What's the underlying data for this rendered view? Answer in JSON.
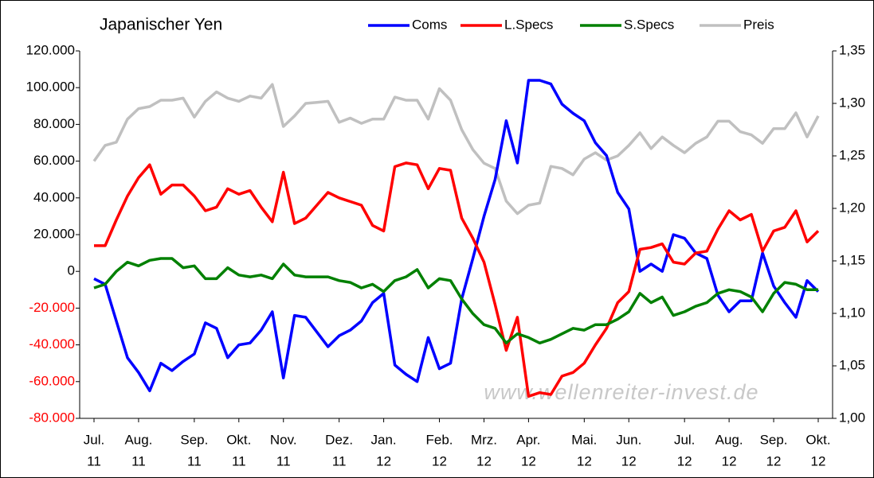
{
  "chart_data": {
    "type": "line",
    "title": "Japanischer Yen",
    "watermark": "www.wellenreiter-invest.de",
    "categories": [
      [
        "Jul.",
        "11"
      ],
      null,
      null,
      null,
      [
        "Aug.",
        "11"
      ],
      null,
      null,
      null,
      null,
      [
        "Sep.",
        "11"
      ],
      null,
      null,
      null,
      [
        "Okt.",
        "11"
      ],
      null,
      null,
      null,
      [
        "Nov.",
        "11"
      ],
      null,
      null,
      null,
      null,
      [
        "Dez.",
        "11"
      ],
      null,
      null,
      null,
      [
        "Jan.",
        "12"
      ],
      null,
      null,
      null,
      null,
      [
        "Feb.",
        "12"
      ],
      null,
      null,
      null,
      [
        "Mrz.",
        "12"
      ],
      null,
      null,
      null,
      [
        "Apr.",
        "12"
      ],
      null,
      null,
      null,
      null,
      [
        "Mai.",
        "12"
      ],
      null,
      null,
      null,
      [
        "Jun.",
        "12"
      ],
      null,
      null,
      null,
      null,
      [
        "Jul.",
        "12"
      ],
      null,
      null,
      null,
      [
        "Aug.",
        "12"
      ],
      null,
      null,
      null,
      [
        "Sep.",
        "12"
      ],
      null,
      null,
      null,
      [
        "Okt.",
        "12"
      ]
    ],
    "series": [
      {
        "name": "Coms",
        "color": "#0000ff",
        "values": [
          -4000,
          -7000,
          -27000,
          -47000,
          -55000,
          -65000,
          -50000,
          -54000,
          -49000,
          -45000,
          -28000,
          -31000,
          -47000,
          -40000,
          -39000,
          -32000,
          -22000,
          -58000,
          -24000,
          -25000,
          -33000,
          -41000,
          -35000,
          -32000,
          -27000,
          -17000,
          -12000,
          -51000,
          -56000,
          -60000,
          -36000,
          -53000,
          -50000,
          -15000,
          7000,
          30000,
          50000,
          82000,
          59000,
          104000,
          104000,
          102000,
          91000,
          86000,
          82000,
          70000,
          63000,
          43000,
          34000,
          0,
          4000,
          0,
          20000,
          18000,
          10000,
          7000,
          -13000,
          -22000,
          -16000,
          -16000,
          10000,
          -8000,
          -17000,
          -25000,
          -5000,
          -11000
        ]
      },
      {
        "name": "L.Specs",
        "color": "#ff0000",
        "values": [
          14000,
          14000,
          28000,
          41000,
          51000,
          58000,
          42000,
          47000,
          47000,
          41000,
          33000,
          35000,
          45000,
          42000,
          44000,
          35000,
          27000,
          54000,
          26000,
          29000,
          36000,
          43000,
          40000,
          38000,
          36000,
          25000,
          22000,
          57000,
          59000,
          58000,
          45000,
          56000,
          55000,
          29000,
          18000,
          5000,
          -18000,
          -43000,
          -25000,
          -68000,
          -66000,
          -67000,
          -57000,
          -55000,
          -50000,
          -40000,
          -31000,
          -17000,
          -11000,
          12000,
          13000,
          15000,
          5000,
          4000,
          10000,
          11000,
          23000,
          33000,
          28000,
          31000,
          11000,
          22000,
          24000,
          33000,
          16000,
          22000
        ]
      },
      {
        "name": "S.Specs",
        "color": "#008000",
        "values": [
          -9000,
          -7000,
          0,
          5000,
          3000,
          6000,
          7000,
          7000,
          2000,
          3000,
          -4000,
          -4000,
          2000,
          -2000,
          -3000,
          -2000,
          -4000,
          4000,
          -2000,
          -3000,
          -3000,
          -3000,
          -5000,
          -6000,
          -9000,
          -7000,
          -11000,
          -5000,
          -3000,
          1000,
          -9000,
          -4000,
          -5000,
          -15000,
          -23000,
          -29000,
          -31000,
          -39000,
          -34000,
          -36000,
          -39000,
          -37000,
          -34000,
          -31000,
          -32000,
          -29000,
          -29000,
          -26000,
          -22000,
          -12000,
          -17000,
          -14000,
          -24000,
          -22000,
          -19000,
          -17000,
          -12000,
          -10000,
          -11000,
          -14000,
          -22000,
          -12000,
          -6000,
          -7000,
          -10000,
          -10000
        ]
      },
      {
        "name": "Preis",
        "color": "#c0c0c0",
        "axis": "y2",
        "values": [
          1.245,
          1.26,
          1.263,
          1.285,
          1.295,
          1.297,
          1.303,
          1.303,
          1.305,
          1.287,
          1.302,
          1.311,
          1.305,
          1.302,
          1.307,
          1.305,
          1.318,
          1.278,
          1.288,
          1.3,
          1.301,
          1.302,
          1.282,
          1.286,
          1.281,
          1.285,
          1.285,
          1.306,
          1.303,
          1.303,
          1.285,
          1.314,
          1.303,
          1.275,
          1.256,
          1.243,
          1.238,
          1.207,
          1.195,
          1.203,
          1.205,
          1.24,
          1.238,
          1.232,
          1.247,
          1.253,
          1.246,
          1.25,
          1.26,
          1.272,
          1.257,
          1.268,
          1.26,
          1.253,
          1.262,
          1.268,
          1.283,
          1.283,
          1.273,
          1.27,
          1.262,
          1.276,
          1.276,
          1.291,
          1.268,
          1.288
        ]
      }
    ],
    "ylim": [
      -80000,
      120000
    ],
    "yticks": [
      {
        "value": -80000,
        "label": "-80.000"
      },
      {
        "value": -60000,
        "label": "-60.000"
      },
      {
        "value": -40000,
        "label": "-40.000"
      },
      {
        "value": -20000,
        "label": "-20.000"
      },
      0,
      {
        "value": 20000,
        "label": "20.000"
      },
      {
        "value": 40000,
        "label": "40.000"
      },
      {
        "value": 60000,
        "label": "60.000"
      },
      {
        "value": 80000,
        "label": "80.000"
      },
      {
        "value": 100000,
        "label": "100.000"
      },
      {
        "value": 120000,
        "label": "120.000"
      }
    ],
    "negative_tick_color": "#ff0000",
    "y2lim": [
      1.0,
      1.35
    ],
    "y2ticks": [
      {
        "value": 1.0,
        "label": "1,00"
      },
      {
        "value": 1.05,
        "label": "1,05"
      },
      {
        "value": 1.1,
        "label": "1,10"
      },
      {
        "value": 1.15,
        "label": "1,15"
      },
      {
        "value": 1.2,
        "label": "1,20"
      },
      {
        "value": 1.25,
        "label": "1,25"
      },
      {
        "value": 1.3,
        "label": "1,30"
      },
      {
        "value": 1.35,
        "label": "1,35"
      }
    ],
    "legend": "top",
    "grid": false
  }
}
